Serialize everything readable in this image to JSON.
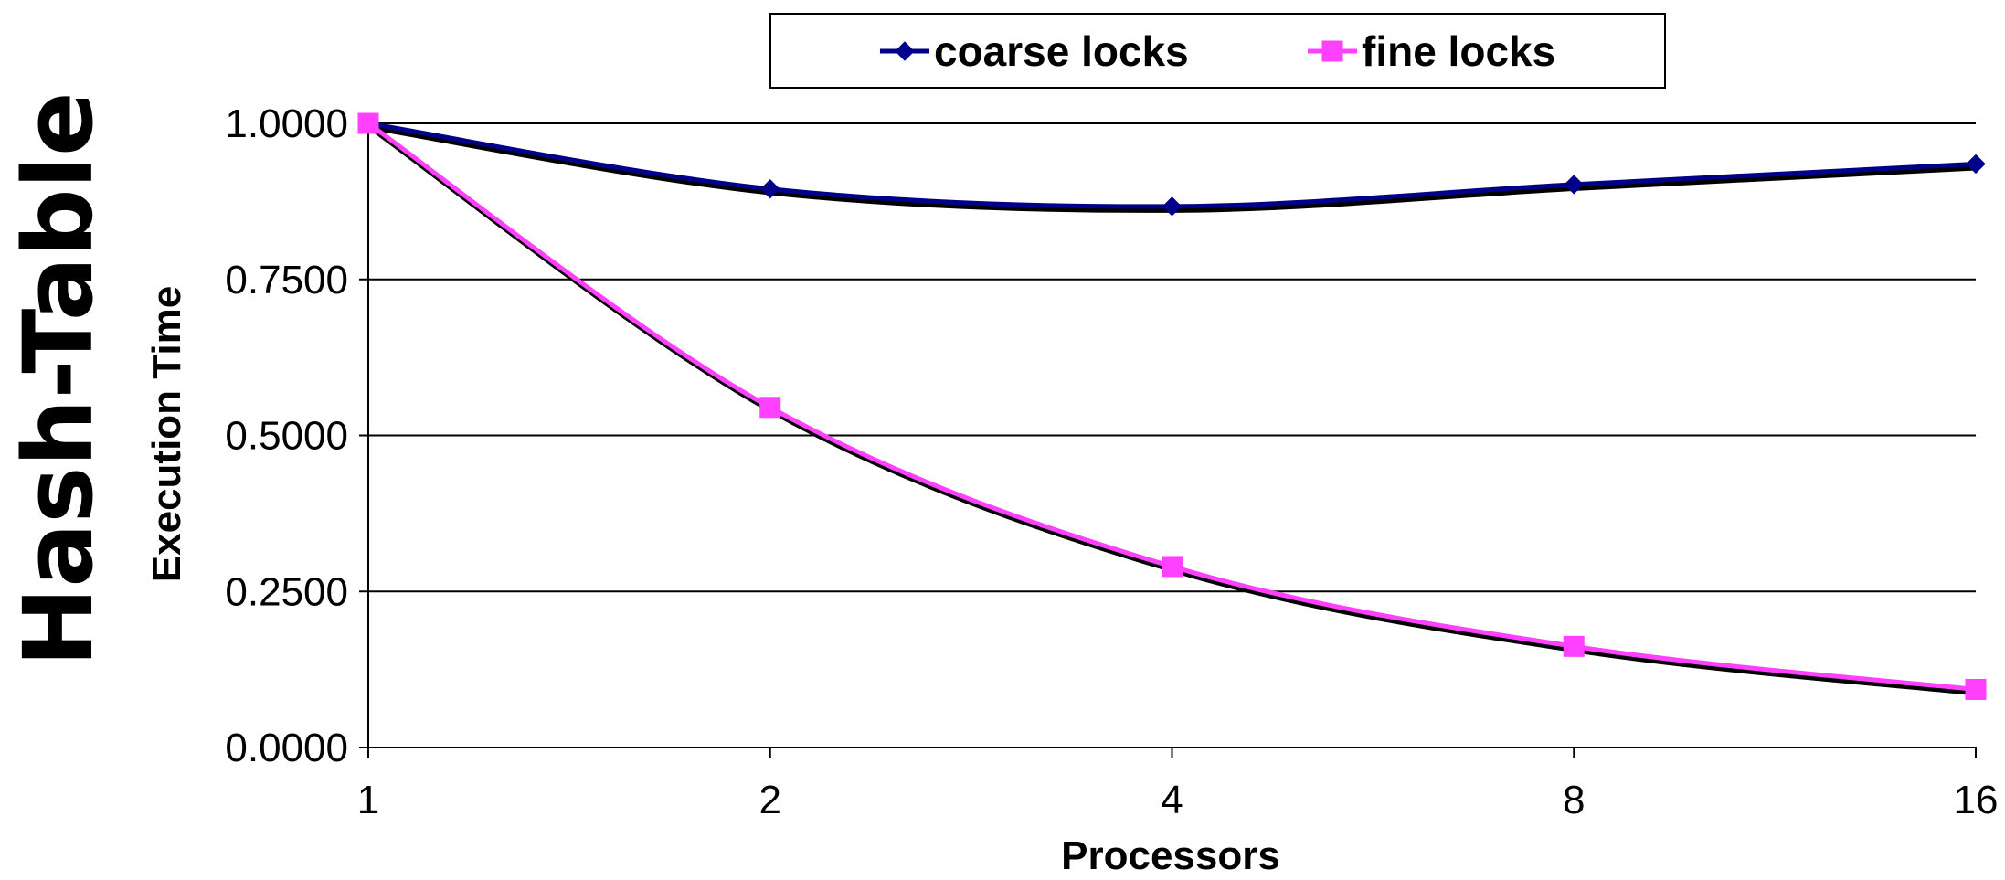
{
  "chart_data": {
    "type": "line",
    "title": "Hash-Table",
    "xlabel": "Processors",
    "ylabel": "Execution Time",
    "categories": [
      "1",
      "2",
      "4",
      "8",
      "16"
    ],
    "yticks": [
      "0.0000",
      "0.2500",
      "0.5000",
      "0.7500",
      "1.0000"
    ],
    "ylim": [
      0,
      1
    ],
    "grid": true,
    "legend": "top-center",
    "series": [
      {
        "name": "coarse locks",
        "color": "#00008b",
        "marker": "diamond",
        "values": [
          1.0,
          0.895,
          0.867,
          0.902,
          0.935
        ]
      },
      {
        "name": "fine locks",
        "color": "#ff40ff",
        "marker": "square",
        "values": [
          1.0,
          0.545,
          0.29,
          0.162,
          0.093
        ]
      }
    ]
  }
}
